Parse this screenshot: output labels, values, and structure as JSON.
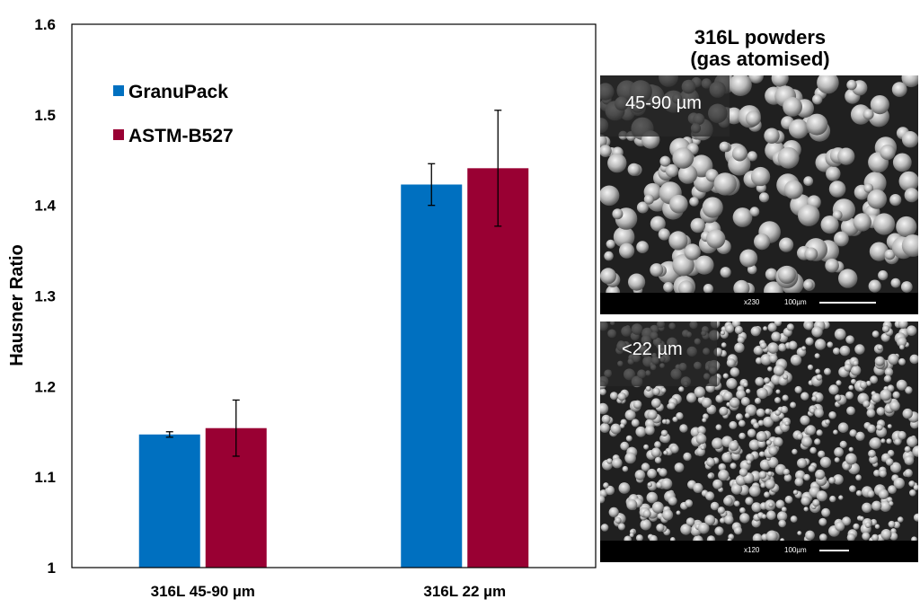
{
  "chart_data": {
    "type": "bar",
    "categories": [
      "316L 45-90 µm",
      "316L 22 µm"
    ],
    "series": [
      {
        "name": "GranuPack",
        "color": "#0070C0",
        "values": [
          1.147,
          1.423
        ],
        "errors": [
          0.003,
          0.023
        ]
      },
      {
        "name": "ASTM-B527",
        "color": "#990033",
        "values": [
          1.154,
          1.441
        ],
        "errors": [
          0.031,
          0.064
        ]
      }
    ],
    "ylabel": "Hausner Ratio",
    "xlabel": "",
    "ylim": [
      1,
      1.6
    ],
    "yticks": [
      "1",
      "1.1",
      "1.2",
      "1.3",
      "1.4",
      "1.5",
      "1.6"
    ],
    "legend_placement": "top-left",
    "grid": false
  },
  "panel": {
    "title_line1": "316L powders",
    "title_line2": "(gas atomised)",
    "images": [
      {
        "label": "45-90 µm",
        "magnification": "x230",
        "scale_text": "100µm"
      },
      {
        "label": "<22 µm",
        "magnification": "x120",
        "scale_text": "100µm"
      }
    ]
  }
}
